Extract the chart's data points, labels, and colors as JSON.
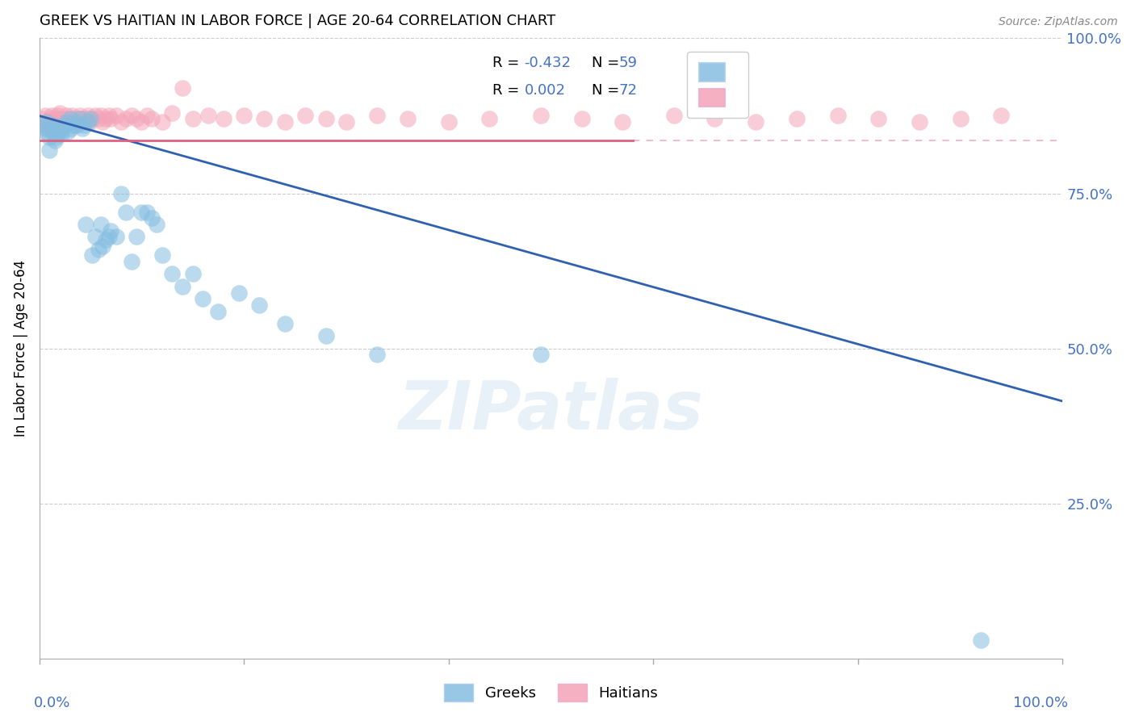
{
  "title": "GREEK VS HAITIAN IN LABOR FORCE | AGE 20-64 CORRELATION CHART",
  "source": "Source: ZipAtlas.com",
  "ylabel": "In Labor Force | Age 20-64",
  "xlim": [
    0.0,
    1.0
  ],
  "ylim": [
    0.0,
    1.0
  ],
  "greek_color": "#85bde0",
  "haitian_color": "#f4a4b8",
  "greek_line_color": "#3060b0",
  "haitian_line_color": "#e06080",
  "legend_greek_R": "-0.432",
  "legend_greek_N": "59",
  "legend_haitian_R": "0.002",
  "legend_haitian_N": "72",
  "watermark": "ZIPatlas",
  "greek_line_x0": 0.0,
  "greek_line_y0": 0.875,
  "greek_line_x1": 1.0,
  "greek_line_y1": 0.415,
  "haitian_line_y": 0.835,
  "haitian_line_solid_end": 0.58,
  "greek_scatter_x": [
    0.003,
    0.005,
    0.007,
    0.008,
    0.01,
    0.01,
    0.012,
    0.013,
    0.014,
    0.015,
    0.016,
    0.018,
    0.02,
    0.021,
    0.022,
    0.025,
    0.026,
    0.028,
    0.03,
    0.031,
    0.033,
    0.035,
    0.037,
    0.04,
    0.042,
    0.044,
    0.045,
    0.048,
    0.05,
    0.052,
    0.055,
    0.058,
    0.06,
    0.062,
    0.065,
    0.068,
    0.07,
    0.075,
    0.08,
    0.085,
    0.09,
    0.095,
    0.1,
    0.105,
    0.11,
    0.115,
    0.12,
    0.13,
    0.14,
    0.15,
    0.16,
    0.175,
    0.195,
    0.215,
    0.24,
    0.28,
    0.33,
    0.49,
    0.92
  ],
  "greek_scatter_y": [
    0.86,
    0.855,
    0.865,
    0.845,
    0.84,
    0.82,
    0.85,
    0.855,
    0.86,
    0.835,
    0.84,
    0.845,
    0.855,
    0.85,
    0.845,
    0.86,
    0.865,
    0.85,
    0.87,
    0.855,
    0.86,
    0.865,
    0.86,
    0.87,
    0.855,
    0.86,
    0.7,
    0.865,
    0.87,
    0.65,
    0.68,
    0.66,
    0.7,
    0.665,
    0.675,
    0.68,
    0.69,
    0.68,
    0.75,
    0.72,
    0.64,
    0.68,
    0.72,
    0.72,
    0.71,
    0.7,
    0.65,
    0.62,
    0.6,
    0.62,
    0.58,
    0.56,
    0.59,
    0.57,
    0.54,
    0.52,
    0.49,
    0.49,
    0.03
  ],
  "haitian_scatter_x": [
    0.003,
    0.005,
    0.006,
    0.008,
    0.01,
    0.011,
    0.012,
    0.013,
    0.015,
    0.016,
    0.018,
    0.02,
    0.021,
    0.022,
    0.024,
    0.026,
    0.028,
    0.03,
    0.032,
    0.034,
    0.036,
    0.038,
    0.04,
    0.042,
    0.044,
    0.046,
    0.048,
    0.05,
    0.052,
    0.055,
    0.058,
    0.06,
    0.062,
    0.065,
    0.068,
    0.07,
    0.075,
    0.08,
    0.085,
    0.09,
    0.095,
    0.1,
    0.105,
    0.11,
    0.12,
    0.13,
    0.14,
    0.15,
    0.165,
    0.18,
    0.2,
    0.22,
    0.24,
    0.26,
    0.28,
    0.3,
    0.33,
    0.36,
    0.4,
    0.44,
    0.49,
    0.53,
    0.57,
    0.62,
    0.66,
    0.7,
    0.74,
    0.78,
    0.82,
    0.86,
    0.9,
    0.94
  ],
  "haitian_scatter_y": [
    0.87,
    0.86,
    0.875,
    0.855,
    0.865,
    0.87,
    0.875,
    0.86,
    0.865,
    0.87,
    0.875,
    0.88,
    0.865,
    0.87,
    0.86,
    0.875,
    0.87,
    0.865,
    0.875,
    0.87,
    0.865,
    0.87,
    0.875,
    0.87,
    0.865,
    0.87,
    0.875,
    0.865,
    0.87,
    0.875,
    0.87,
    0.875,
    0.865,
    0.87,
    0.875,
    0.87,
    0.875,
    0.865,
    0.87,
    0.875,
    0.87,
    0.865,
    0.875,
    0.87,
    0.865,
    0.88,
    0.92,
    0.87,
    0.875,
    0.87,
    0.875,
    0.87,
    0.865,
    0.875,
    0.87,
    0.865,
    0.875,
    0.87,
    0.865,
    0.87,
    0.875,
    0.87,
    0.865,
    0.875,
    0.87,
    0.865,
    0.87,
    0.875,
    0.87,
    0.865,
    0.87,
    0.875
  ]
}
